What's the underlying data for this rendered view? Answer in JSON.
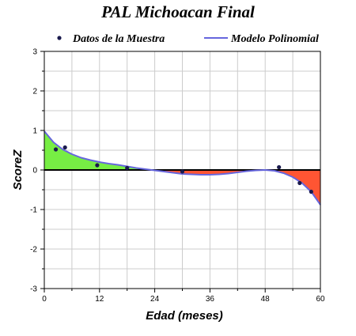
{
  "chart_data": {
    "type": "scatter",
    "title": "PAL Michoacan Final",
    "xlabel": "Edad (meses)",
    "ylabel": "ScoreZ",
    "xlim": [
      0,
      60
    ],
    "ylim": [
      -3,
      3
    ],
    "xticks": [
      0,
      12,
      24,
      36,
      48,
      60
    ],
    "yticks": [
      -3,
      -2,
      -1,
      0,
      1,
      2,
      3
    ],
    "grid": true,
    "legend_position": "top",
    "legend": [
      "Datos de la Muestra",
      "Modelo Polinomial"
    ],
    "series": [
      {
        "name": "Datos de la Muestra",
        "kind": "points",
        "color": "#1a1a4d",
        "x": [
          2.5,
          4.5,
          11.5,
          18,
          30,
          51,
          55.5,
          58
        ],
        "y": [
          0.52,
          0.57,
          0.12,
          0.05,
          -0.04,
          0.07,
          -0.33,
          -0.55
        ]
      },
      {
        "name": "Modelo Polinomial",
        "kind": "line",
        "color": "#6666dd",
        "x": [
          0,
          2,
          4,
          6,
          8,
          10,
          12,
          14,
          16,
          18,
          20,
          22,
          24,
          26,
          28,
          30,
          32,
          34,
          36,
          38,
          40,
          42,
          44,
          46,
          48,
          50,
          52,
          54,
          56,
          58,
          60
        ],
        "y": [
          0.98,
          0.7,
          0.52,
          0.4,
          0.31,
          0.25,
          0.2,
          0.16,
          0.13,
          0.09,
          0.05,
          0.02,
          -0.01,
          -0.04,
          -0.07,
          -0.1,
          -0.11,
          -0.12,
          -0.12,
          -0.11,
          -0.09,
          -0.06,
          -0.03,
          -0.01,
          0.0,
          -0.02,
          -0.08,
          -0.18,
          -0.33,
          -0.55,
          -0.88
        ]
      }
    ],
    "fill_positive_color": "#77ee44",
    "fill_negative_color": "#ff5533"
  }
}
